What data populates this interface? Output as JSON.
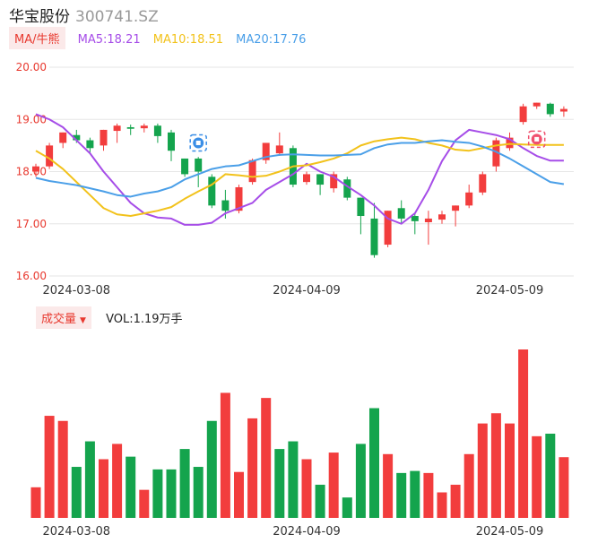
{
  "header": {
    "name": "华宝股份",
    "code": "300741.SZ"
  },
  "ma_legend": {
    "toggle_label": "MA/牛熊",
    "ma5": "MA5:18.21",
    "ma10": "MA10:18.51",
    "ma20": "MA20:17.76"
  },
  "volume_legend": {
    "toggle_label": "成交量",
    "vol": "VOL:1.19万手"
  },
  "colors": {
    "up": "#f23d3d",
    "down": "#14a44d",
    "ma5": "#a64de8",
    "ma10": "#f2c21b",
    "ma20": "#4a9fe8",
    "grid": "#e6e6e6",
    "axis_text": "#e8392f"
  },
  "icons": [
    "bull-marker-icon",
    "bear-marker-icon"
  ],
  "chart_data": [
    {
      "type": "candlestick",
      "title": "",
      "ylim": [
        16.0,
        20.0
      ],
      "y_ticks": [
        "20.00",
        "19.00",
        "18.00",
        "17.00",
        "16.00"
      ],
      "x_ticks": [
        "2024-03-08",
        "2024-04-09",
        "2024-05-09"
      ],
      "candles": [
        {
          "o": 18.0,
          "h": 18.15,
          "l": 17.9,
          "c": 18.1
        },
        {
          "o": 18.1,
          "h": 18.55,
          "l": 18.05,
          "c": 18.5
        },
        {
          "o": 18.55,
          "h": 18.75,
          "l": 18.45,
          "c": 18.75
        },
        {
          "o": 18.7,
          "h": 18.8,
          "l": 18.55,
          "c": 18.6
        },
        {
          "o": 18.6,
          "h": 18.65,
          "l": 18.35,
          "c": 18.45
        },
        {
          "o": 18.5,
          "h": 18.8,
          "l": 18.4,
          "c": 18.8
        },
        {
          "o": 18.78,
          "h": 18.92,
          "l": 18.55,
          "c": 18.88
        },
        {
          "o": 18.85,
          "h": 18.9,
          "l": 18.7,
          "c": 18.82
        },
        {
          "o": 18.83,
          "h": 18.92,
          "l": 18.75,
          "c": 18.88
        },
        {
          "o": 18.88,
          "h": 18.92,
          "l": 18.55,
          "c": 18.68
        },
        {
          "o": 18.75,
          "h": 18.8,
          "l": 18.2,
          "c": 18.4
        },
        {
          "o": 18.25,
          "h": 18.25,
          "l": 17.9,
          "c": 17.95
        },
        {
          "o": 18.25,
          "h": 18.28,
          "l": 17.7,
          "c": 18.0
        },
        {
          "o": 17.9,
          "h": 17.95,
          "l": 17.3,
          "c": 17.35
        },
        {
          "o": 17.45,
          "h": 17.65,
          "l": 17.1,
          "c": 17.25
        },
        {
          "o": 17.25,
          "h": 17.75,
          "l": 17.2,
          "c": 17.7
        },
        {
          "o": 17.8,
          "h": 18.25,
          "l": 17.75,
          "c": 18.22
        },
        {
          "o": 18.22,
          "h": 18.55,
          "l": 18.15,
          "c": 18.55
        },
        {
          "o": 18.35,
          "h": 18.75,
          "l": 18.3,
          "c": 18.5
        },
        {
          "o": 18.45,
          "h": 18.5,
          "l": 17.7,
          "c": 17.75
        },
        {
          "o": 17.8,
          "h": 18.0,
          "l": 17.75,
          "c": 17.95
        },
        {
          "o": 17.95,
          "h": 17.95,
          "l": 17.55,
          "c": 17.75
        },
        {
          "o": 17.68,
          "h": 18.0,
          "l": 17.6,
          "c": 17.95
        },
        {
          "o": 17.85,
          "h": 17.9,
          "l": 17.45,
          "c": 17.5
        },
        {
          "o": 17.5,
          "h": 17.5,
          "l": 16.8,
          "c": 17.15
        },
        {
          "o": 17.1,
          "h": 17.4,
          "l": 16.35,
          "c": 16.4
        },
        {
          "o": 16.6,
          "h": 17.25,
          "l": 16.55,
          "c": 17.25
        },
        {
          "o": 17.3,
          "h": 17.45,
          "l": 17.0,
          "c": 17.1
        },
        {
          "o": 17.15,
          "h": 17.2,
          "l": 16.8,
          "c": 17.05
        },
        {
          "o": 17.03,
          "h": 17.25,
          "l": 16.6,
          "c": 17.1
        },
        {
          "o": 17.08,
          "h": 17.25,
          "l": 17.0,
          "c": 17.18
        },
        {
          "o": 17.25,
          "h": 17.35,
          "l": 16.95,
          "c": 17.35
        },
        {
          "o": 17.35,
          "h": 17.75,
          "l": 17.3,
          "c": 17.6
        },
        {
          "o": 17.6,
          "h": 18.0,
          "l": 17.55,
          "c": 17.95
        },
        {
          "o": 18.1,
          "h": 18.65,
          "l": 18.0,
          "c": 18.6
        },
        {
          "o": 18.45,
          "h": 18.75,
          "l": 18.4,
          "c": 18.65
        },
        {
          "o": 18.95,
          "h": 19.3,
          "l": 18.9,
          "c": 19.25
        },
        {
          "o": 19.25,
          "h": 19.32,
          "l": 19.2,
          "c": 19.32
        },
        {
          "o": 19.3,
          "h": 19.32,
          "l": 19.05,
          "c": 19.1
        },
        {
          "o": 19.15,
          "h": 19.25,
          "l": 19.05,
          "c": 19.2
        }
      ],
      "ma5": [
        19.1,
        19.0,
        18.85,
        18.6,
        18.35,
        18.0,
        17.7,
        17.4,
        17.2,
        17.12,
        17.1,
        16.98,
        16.98,
        17.02,
        17.2,
        17.3,
        17.4,
        17.65,
        17.8,
        17.95,
        18.15,
        18.0,
        17.9,
        17.72,
        17.55,
        17.35,
        17.1,
        17.0,
        17.2,
        17.65,
        18.2,
        18.6,
        18.8,
        18.75,
        18.7,
        18.62,
        18.45,
        18.3,
        18.21,
        18.21
      ],
      "ma10": [
        18.4,
        18.25,
        18.05,
        17.8,
        17.55,
        17.3,
        17.18,
        17.15,
        17.2,
        17.25,
        17.32,
        17.48,
        17.62,
        17.75,
        17.95,
        17.93,
        17.9,
        17.92,
        18.0,
        18.1,
        18.12,
        18.18,
        18.25,
        18.35,
        18.5,
        18.58,
        18.62,
        18.65,
        18.62,
        18.55,
        18.5,
        18.42,
        18.4,
        18.45,
        18.5,
        18.53,
        18.52,
        18.51,
        18.51,
        18.51
      ],
      "ma20": [
        17.88,
        17.82,
        17.78,
        17.74,
        17.68,
        17.62,
        17.55,
        17.52,
        17.58,
        17.62,
        17.7,
        17.85,
        17.95,
        18.05,
        18.1,
        18.12,
        18.2,
        18.28,
        18.32,
        18.33,
        18.32,
        18.31,
        18.31,
        18.32,
        18.33,
        18.45,
        18.52,
        18.55,
        18.55,
        18.58,
        18.6,
        18.57,
        18.55,
        18.48,
        18.38,
        18.25,
        18.1,
        17.95,
        17.8,
        17.76
      ]
    },
    {
      "type": "bar",
      "title": "",
      "series": [
        {
          "values": [
            0.6,
            2.0,
            1.9,
            1.0,
            1.5,
            1.15,
            1.45,
            1.2,
            0.55,
            0.95,
            0.95,
            1.35,
            1.0,
            1.9,
            2.45,
            0.9,
            1.95,
            2.35,
            1.35,
            1.5,
            1.15,
            0.65,
            1.28,
            0.4,
            1.45,
            2.15,
            1.25,
            0.88,
            0.92,
            0.88,
            0.5,
            0.65,
            1.25,
            1.85,
            2.05,
            1.85,
            3.3,
            1.6,
            1.65,
            1.19
          ]
        }
      ],
      "up": [
        true,
        true,
        true,
        false,
        false,
        true,
        true,
        false,
        true,
        false,
        false,
        false,
        false,
        false,
        true,
        true,
        true,
        true,
        false,
        false,
        true,
        false,
        true,
        false,
        false,
        false,
        true,
        false,
        false,
        true,
        true,
        true,
        true,
        true,
        true,
        true,
        true,
        true,
        false,
        true
      ],
      "x_ticks": [
        "2024-03-08",
        "2024-04-09",
        "2024-05-09"
      ]
    }
  ]
}
